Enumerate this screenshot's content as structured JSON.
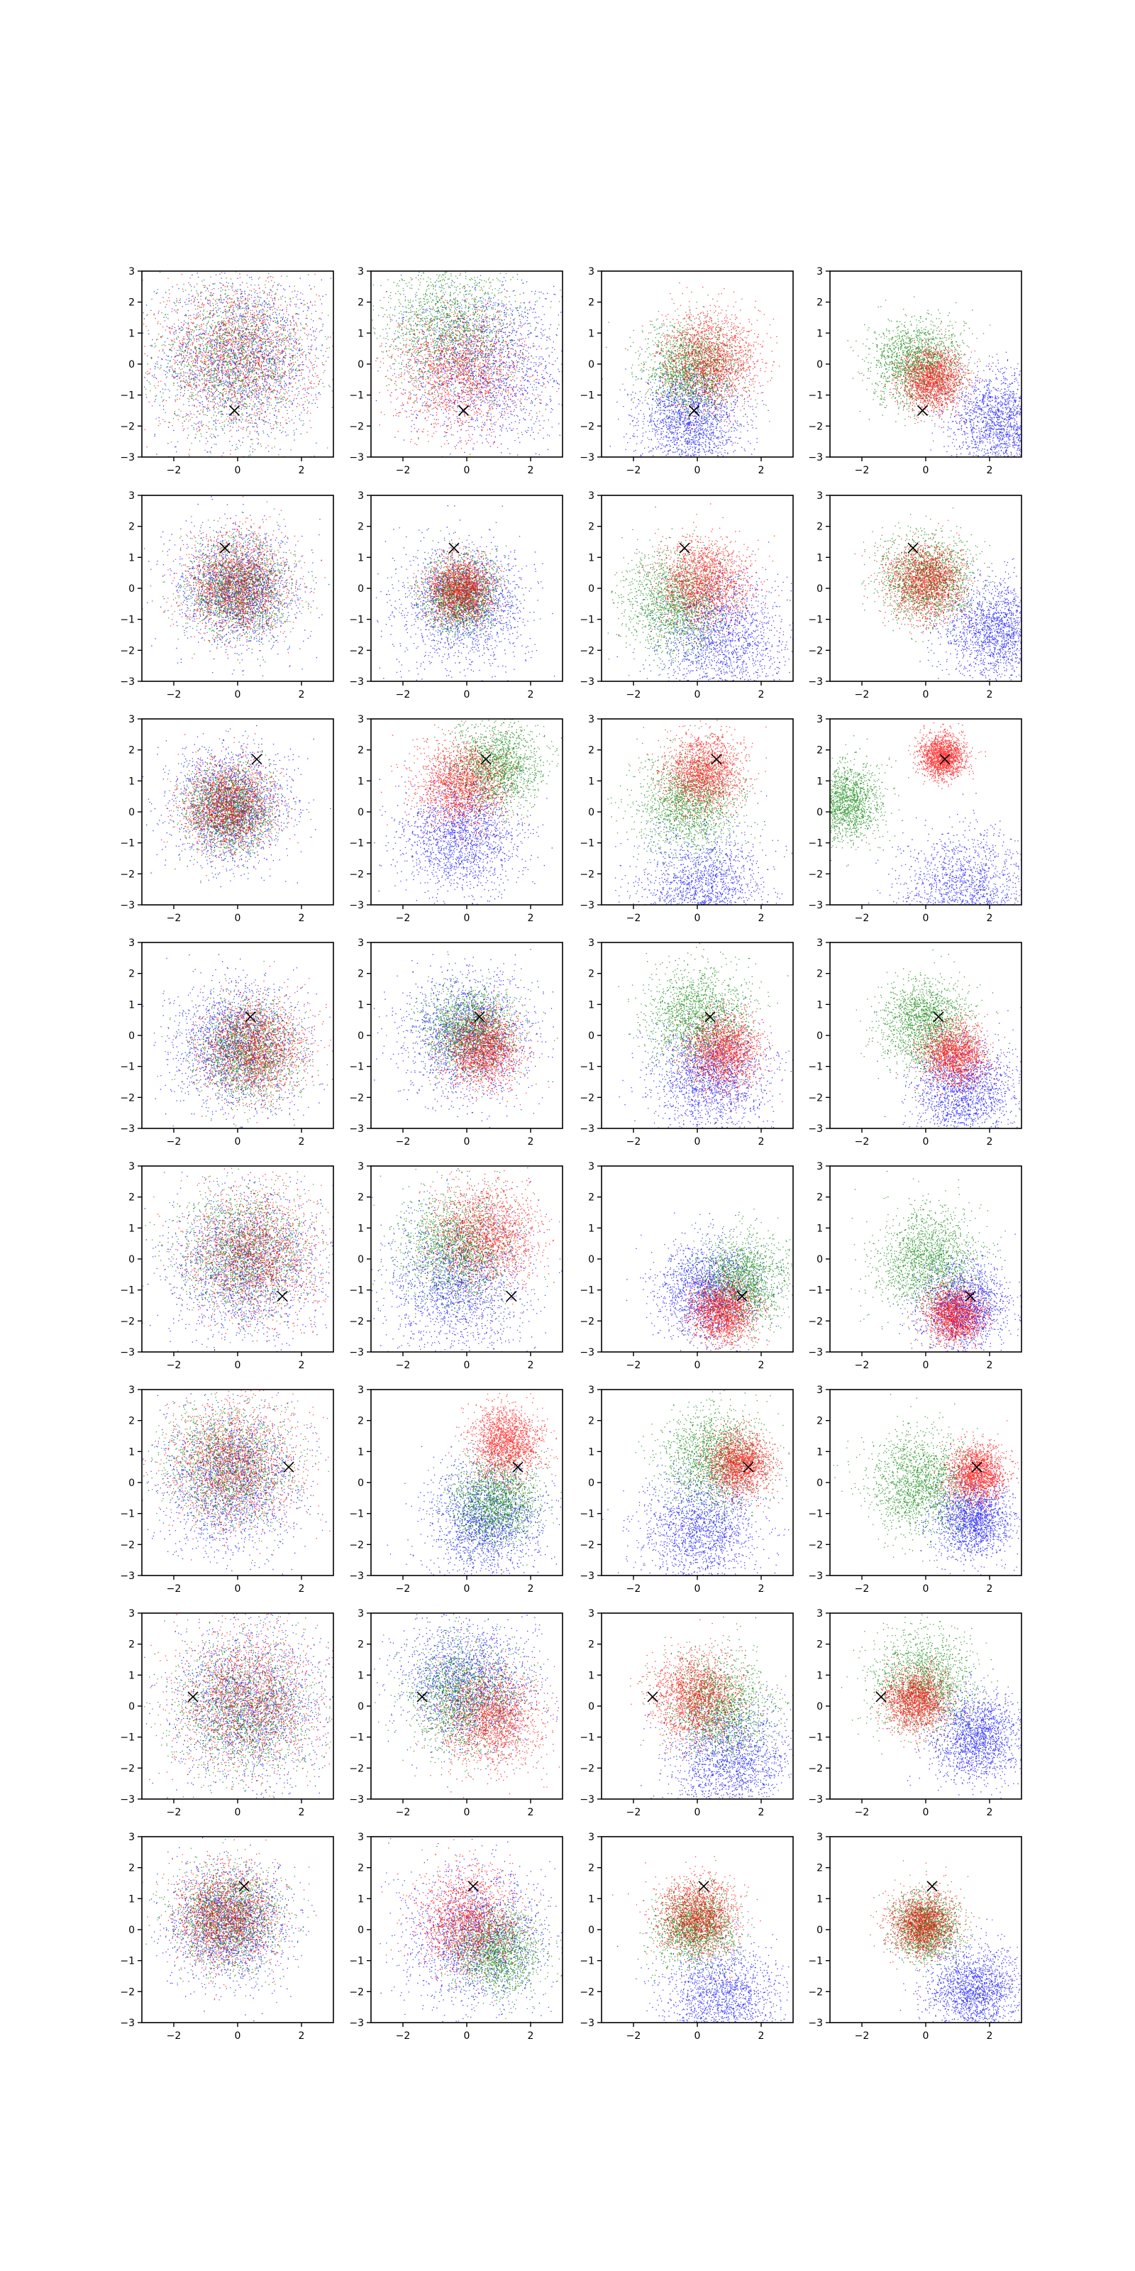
{
  "chart_data": {
    "type": "scatter",
    "layout_grid": {
      "rows": 8,
      "cols": 4
    },
    "xlim": [
      -3,
      3
    ],
    "ylim": [
      -3,
      3
    ],
    "xticks": [
      -2,
      0,
      2
    ],
    "yticks": [
      -3,
      -2,
      -1,
      0,
      1,
      2,
      3
    ],
    "xtick_labels": [
      "−2",
      "0",
      "2"
    ],
    "ytick_labels": [
      "−3",
      "−2",
      "−1",
      "0",
      "1",
      "2",
      "3"
    ],
    "grid": false,
    "legend": "none",
    "series_colors": {
      "red": "#ff0000",
      "green": "#008000",
      "blue": "#0000ff"
    },
    "marker": {
      "symbol": "x",
      "color": "#000000"
    },
    "rows": [
      {
        "marker": [
          -0.1,
          -1.5
        ],
        "panels": [
          {
            "red": [
              0.0,
              0.3,
              1.2
            ],
            "green": [
              -0.1,
              0.2,
              1.2
            ],
            "blue": [
              0.1,
              0.2,
              1.3
            ]
          },
          {
            "red": [
              -0.2,
              -0.2,
              1.0
            ],
            "green": [
              -0.5,
              1.2,
              1.1
            ],
            "blue": [
              0.6,
              0.0,
              1.3
            ]
          },
          {
            "red": [
              0.4,
              0.2,
              0.75
            ],
            "green": [
              -0.2,
              -0.2,
              0.75
            ],
            "blue": [
              -0.2,
              -1.8,
              0.8
            ]
          },
          {
            "red": [
              0.2,
              -0.5,
              0.5
            ],
            "green": [
              -0.3,
              0.0,
              0.7
            ],
            "blue": [
              2.3,
              -1.8,
              0.8
            ]
          }
        ]
      },
      {
        "marker": [
          -0.4,
          1.3
        ],
        "panels": [
          {
            "red": [
              0.0,
              0.1,
              0.8
            ],
            "green": [
              0.0,
              0.0,
              0.8
            ],
            "blue": [
              0.0,
              0.0,
              0.9
            ]
          },
          {
            "red": [
              -0.2,
              0.0,
              0.5
            ],
            "green": [
              -0.2,
              -0.2,
              0.6
            ],
            "blue": [
              -0.1,
              -0.5,
              1.0
            ]
          },
          {
            "red": [
              0.2,
              0.2,
              0.7
            ],
            "green": [
              -0.7,
              -0.5,
              0.8
            ],
            "blue": [
              0.8,
              -1.6,
              1.0
            ]
          },
          {
            "red": [
              0.0,
              0.2,
              0.6
            ],
            "green": [
              0.0,
              0.3,
              0.7
            ],
            "blue": [
              2.2,
              -1.4,
              0.8
            ]
          }
        ]
      },
      {
        "marker": [
          0.6,
          1.7
        ],
        "panels": [
          {
            "red": [
              -0.3,
              0.2,
              0.7
            ],
            "green": [
              -0.3,
              0.1,
              0.7
            ],
            "blue": [
              -0.2,
              0.2,
              0.9
            ]
          },
          {
            "red": [
              -0.2,
              0.9,
              0.7
            ],
            "green": [
              0.9,
              1.5,
              0.7
            ],
            "blue": [
              -0.2,
              -0.8,
              0.9
            ]
          },
          {
            "red": [
              0.2,
              1.3,
              0.6
            ],
            "green": [
              -0.3,
              0.3,
              0.8
            ],
            "blue": [
              0.2,
              -2.5,
              1.0
            ]
          },
          {
            "red": [
              0.5,
              1.8,
              0.35
            ],
            "green": [
              -2.6,
              0.3,
              0.6
            ],
            "blue": [
              1.2,
              -2.6,
              1.0
            ]
          }
        ]
      },
      {
        "marker": [
          0.4,
          0.6
        ],
        "panels": [
          {
            "red": [
              0.5,
              -0.4,
              0.8
            ],
            "green": [
              0.3,
              -0.5,
              0.8
            ],
            "blue": [
              0.0,
              -0.3,
              1.0
            ]
          },
          {
            "red": [
              0.5,
              -0.4,
              0.6
            ],
            "green": [
              0.1,
              0.2,
              0.7
            ],
            "blue": [
              0.0,
              0.0,
              1.0
            ]
          },
          {
            "red": [
              0.8,
              -0.5,
              0.6
            ],
            "green": [
              0.0,
              0.6,
              0.8
            ],
            "blue": [
              0.4,
              -1.4,
              0.9
            ]
          },
          {
            "red": [
              0.9,
              -0.6,
              0.5
            ],
            "green": [
              0.0,
              0.4,
              0.7
            ],
            "blue": [
              1.2,
              -1.8,
              0.8
            ]
          }
        ]
      },
      {
        "marker": [
          1.4,
          -1.2
        ],
        "panels": [
          {
            "red": [
              0.5,
              0.2,
              1.0
            ],
            "green": [
              0.2,
              0.3,
              1.0
            ],
            "blue": [
              0.3,
              -0.2,
              1.2
            ]
          },
          {
            "red": [
              0.6,
              0.8,
              0.8
            ],
            "green": [
              -0.3,
              0.4,
              0.9
            ],
            "blue": [
              -0.3,
              -0.8,
              1.1
            ]
          },
          {
            "red": [
              0.8,
              -1.7,
              0.5
            ],
            "green": [
              1.4,
              -0.7,
              0.7
            ],
            "blue": [
              0.3,
              -1.0,
              0.8
            ]
          },
          {
            "red": [
              0.9,
              -1.8,
              0.45
            ],
            "green": [
              0.0,
              0.0,
              0.8
            ],
            "blue": [
              1.2,
              -1.5,
              0.7
            ]
          }
        ]
      },
      {
        "marker": [
          1.6,
          0.5
        ],
        "panels": [
          {
            "red": [
              -0.2,
              0.6,
              1.0
            ],
            "green": [
              -0.3,
              0.6,
              1.0
            ],
            "blue": [
              -0.2,
              0.0,
              1.1
            ]
          },
          {
            "red": [
              1.2,
              1.3,
              0.55
            ],
            "green": [
              0.9,
              -0.6,
              0.7
            ],
            "blue": [
              0.6,
              -1.2,
              0.9
            ]
          },
          {
            "red": [
              1.3,
              0.6,
              0.5
            ],
            "green": [
              0.5,
              0.8,
              0.8
            ],
            "blue": [
              0.1,
              -1.5,
              0.9
            ]
          },
          {
            "red": [
              1.6,
              0.3,
              0.45
            ],
            "green": [
              -0.2,
              0.0,
              0.8
            ],
            "blue": [
              1.5,
              -1.2,
              0.6
            ]
          }
        ]
      },
      {
        "marker": [
          -1.4,
          0.3
        ],
        "panels": [
          {
            "red": [
              0.3,
              0.2,
              1.1
            ],
            "green": [
              0.2,
              -0.1,
              1.1
            ],
            "blue": [
              0.3,
              0.1,
              1.2
            ]
          },
          {
            "red": [
              0.8,
              -0.4,
              0.8
            ],
            "green": [
              -0.1,
              0.3,
              0.9
            ],
            "blue": [
              0.0,
              0.8,
              1.0
            ]
          },
          {
            "red": [
              -0.1,
              0.3,
              0.7
            ],
            "green": [
              0.7,
              0.0,
              0.8
            ],
            "blue": [
              1.0,
              -1.8,
              0.9
            ]
          },
          {
            "red": [
              -0.3,
              0.2,
              0.5
            ],
            "green": [
              -0.1,
              0.8,
              0.8
            ],
            "blue": [
              1.6,
              -1.0,
              0.7
            ]
          }
        ]
      },
      {
        "marker": [
          0.2,
          1.4
        ],
        "panels": [
          {
            "red": [
              -0.4,
              0.4,
              0.8
            ],
            "green": [
              -0.3,
              0.4,
              0.8
            ],
            "blue": [
              -0.3,
              0.2,
              0.9
            ]
          },
          {
            "red": [
              0.0,
              0.3,
              0.8
            ],
            "green": [
              0.9,
              -0.7,
              0.7
            ],
            "blue": [
              0.3,
              -0.2,
              1.1
            ]
          },
          {
            "red": [
              0.0,
              0.4,
              0.6
            ],
            "green": [
              -0.1,
              0.1,
              0.6
            ],
            "blue": [
              0.8,
              -2.3,
              0.9
            ]
          },
          {
            "red": [
              -0.1,
              0.2,
              0.5
            ],
            "green": [
              0.0,
              0.1,
              0.5
            ],
            "blue": [
              1.5,
              -1.9,
              0.7
            ]
          }
        ]
      }
    ]
  }
}
